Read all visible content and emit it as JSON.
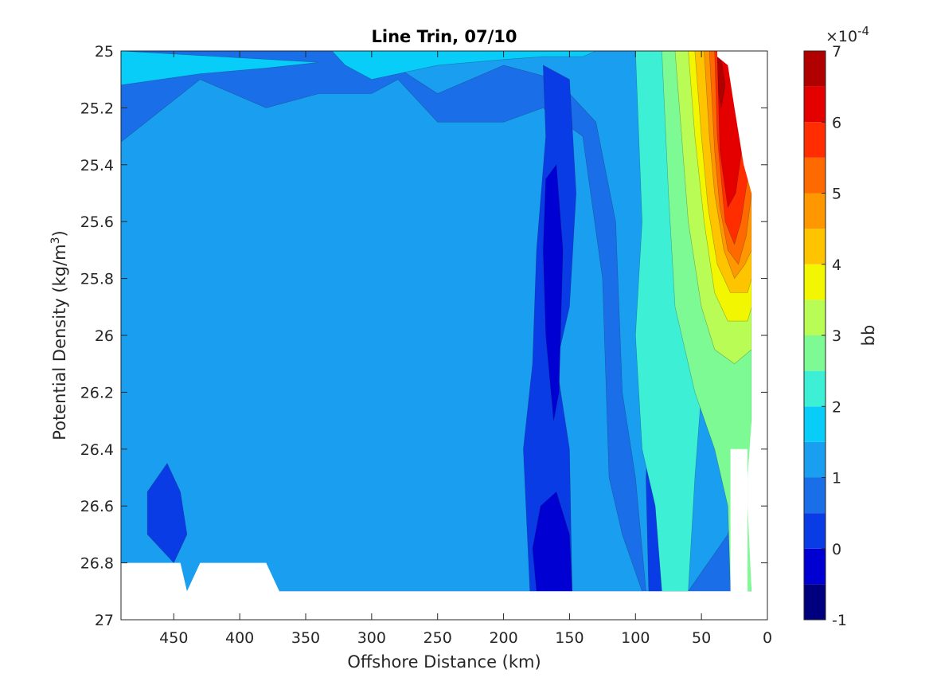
{
  "chart_data": {
    "type": "contourf",
    "title": "Line Trin, 07/10",
    "xlabel": "Offshore Distance (km)",
    "ylabel": {
      "main": "Potential Density (kg/m",
      "sup": "3",
      "close": ")"
    },
    "xlim": [
      490,
      0
    ],
    "ylim": [
      25,
      27
    ],
    "x_reversed": true,
    "y_reversed": true,
    "xticks": [
      450,
      400,
      350,
      300,
      250,
      200,
      150,
      100,
      50,
      0
    ],
    "yticks": [
      25,
      25.2,
      25.4,
      25.6,
      25.8,
      26,
      26.2,
      26.4,
      26.6,
      26.8,
      27
    ],
    "colorbar": {
      "label": "bb",
      "multiplier": {
        "prefix": "×10",
        "exp": "-4"
      },
      "ticks": [
        -1,
        0,
        1,
        2,
        3,
        4,
        5,
        6,
        7
      ],
      "levels": [
        -1,
        -0.5,
        0,
        0.5,
        1,
        1.5,
        2,
        2.5,
        3,
        3.5,
        4,
        4.5,
        5,
        5.5,
        6,
        6.5,
        7
      ],
      "colors": [
        "#00007f",
        "#0000d2",
        "#0a3ce6",
        "#1a6fe8",
        "#1a9ff0",
        "#08cdf8",
        "#3df0d5",
        "#7dfa93",
        "#b8fc55",
        "#f2f600",
        "#ffc400",
        "#ff9800",
        "#ff6a00",
        "#ff2d00",
        "#e50000",
        "#b00000"
      ]
    },
    "regions": [
      {
        "level": 0.5,
        "label": "background",
        "points": [
          [
            490,
            25
          ],
          [
            12,
            25
          ],
          [
            12,
            26.9
          ],
          [
            490,
            26.9
          ]
        ]
      },
      {
        "level": 1,
        "label": "upper-left band",
        "points": [
          [
            490,
            25
          ],
          [
            300,
            25
          ],
          [
            250,
            25.15
          ],
          [
            200,
            25.05
          ],
          [
            160,
            25.1
          ],
          [
            130,
            25.25
          ],
          [
            115,
            25.6
          ],
          [
            110,
            26.2
          ],
          [
            100,
            26.5
          ],
          [
            92,
            26.9
          ],
          [
            60,
            26.9
          ],
          [
            30,
            26.7
          ],
          [
            20,
            26.5
          ],
          [
            12,
            26.3
          ],
          [
            12,
            25
          ],
          [
            490,
            25
          ],
          [
            490,
            25.32
          ],
          [
            430,
            25.1
          ],
          [
            380,
            25.2
          ],
          [
            340,
            25.15
          ],
          [
            300,
            25.15
          ],
          [
            280,
            25.1
          ],
          [
            250,
            25.25
          ],
          [
            200,
            25.25
          ],
          [
            170,
            25.2
          ],
          [
            140,
            25.3
          ],
          [
            125,
            25.8
          ],
          [
            120,
            26.5
          ],
          [
            110,
            26.7
          ],
          [
            95,
            26.9
          ],
          [
            490,
            26.9
          ]
        ]
      },
      {
        "level": 1.5,
        "label": "top-left cyan",
        "points": [
          [
            490,
            25
          ],
          [
            330,
            25
          ],
          [
            320,
            25.05
          ],
          [
            300,
            25.1
          ],
          [
            250,
            25.05
          ],
          [
            200,
            25.03
          ],
          [
            170,
            25.02
          ],
          [
            140,
            25.02
          ],
          [
            130,
            25
          ],
          [
            490,
            25
          ],
          [
            490,
            25.12
          ],
          [
            430,
            25.08
          ],
          [
            380,
            25.06
          ],
          [
            340,
            25.04
          ]
        ]
      },
      {
        "level": 0,
        "label": "deep core 1",
        "points": [
          [
            170,
            25.05
          ],
          [
            150,
            25.1
          ],
          [
            145,
            25.5
          ],
          [
            150,
            25.9
          ],
          [
            160,
            26.1
          ],
          [
            150,
            26.4
          ],
          [
            148,
            26.9
          ],
          [
            180,
            26.9
          ],
          [
            185,
            26.4
          ],
          [
            178,
            26.1
          ],
          [
            175,
            25.7
          ],
          [
            168,
            25.3
          ]
        ]
      },
      {
        "level": 0,
        "label": "deep core 2",
        "points": [
          [
            80,
            26.0
          ],
          [
            70,
            26.2
          ],
          [
            72,
            26.6
          ],
          [
            68,
            26.9
          ],
          [
            90,
            26.9
          ],
          [
            92,
            26.5
          ],
          [
            88,
            26.1
          ]
        ]
      },
      {
        "level": 0,
        "label": "left blob",
        "points": [
          [
            470,
            26.55
          ],
          [
            455,
            26.45
          ],
          [
            445,
            26.55
          ],
          [
            440,
            26.7
          ],
          [
            450,
            26.8
          ],
          [
            470,
            26.7
          ]
        ]
      },
      {
        "level": -0.5,
        "label": "darkest core",
        "points": [
          [
            168,
            25.45
          ],
          [
            160,
            25.4
          ],
          [
            155,
            25.7
          ],
          [
            158,
            26.2
          ],
          [
            162,
            26.3
          ],
          [
            168,
            26.0
          ],
          [
            170,
            25.7
          ]
        ]
      },
      {
        "level": -0.5,
        "label": "darkest core lower",
        "points": [
          [
            172,
            26.6
          ],
          [
            160,
            26.55
          ],
          [
            150,
            26.7
          ],
          [
            148,
            26.9
          ],
          [
            175,
            26.9
          ],
          [
            178,
            26.75
          ]
        ]
      },
      {
        "level": 2,
        "label": "coastal cyan",
        "points": [
          [
            125,
            25
          ],
          [
            100,
            25
          ],
          [
            95,
            25.6
          ],
          [
            100,
            26.0
          ],
          [
            95,
            26.4
          ],
          [
            85,
            26.6
          ],
          [
            80,
            26.9
          ],
          [
            60,
            26.9
          ],
          [
            55,
            26.5
          ],
          [
            50,
            26.2
          ],
          [
            45,
            26.0
          ],
          [
            12,
            26.0
          ],
          [
            12,
            25
          ],
          [
            125,
            25
          ]
        ]
      },
      {
        "level": 2.5,
        "label": "coastal teal",
        "points": [
          [
            100,
            25
          ],
          [
            80,
            25
          ],
          [
            75,
            25.5
          ],
          [
            70,
            25.9
          ],
          [
            55,
            26.2
          ],
          [
            40,
            26.4
          ],
          [
            30,
            26.6
          ],
          [
            28,
            26.9
          ],
          [
            12,
            26.9
          ],
          [
            12,
            25.6
          ],
          [
            20,
            25.5
          ],
          [
            30,
            25.4
          ],
          [
            45,
            25.2
          ],
          [
            50,
            25
          ]
        ]
      },
      {
        "level": 3,
        "label": "coastal green",
        "points": [
          [
            85,
            25
          ],
          [
            70,
            25
          ],
          [
            65,
            25.3
          ],
          [
            60,
            25.6
          ],
          [
            50,
            25.9
          ],
          [
            40,
            26.05
          ],
          [
            25,
            26.1
          ],
          [
            12,
            26.05
          ],
          [
            12,
            25.0
          ],
          [
            85,
            25
          ]
        ]
      },
      {
        "level": 3.5,
        "label": "coastal lime",
        "points": [
          [
            75,
            25
          ],
          [
            60,
            25
          ],
          [
            55,
            25.3
          ],
          [
            48,
            25.6
          ],
          [
            40,
            25.85
          ],
          [
            30,
            25.95
          ],
          [
            15,
            25.95
          ],
          [
            12,
            25.9
          ],
          [
            12,
            25
          ],
          [
            75,
            25
          ]
        ]
      },
      {
        "level": 4,
        "label": "coastal yellow",
        "points": [
          [
            65,
            25
          ],
          [
            55,
            25
          ],
          [
            50,
            25.3
          ],
          [
            45,
            25.55
          ],
          [
            38,
            25.75
          ],
          [
            28,
            25.85
          ],
          [
            15,
            25.85
          ],
          [
            12,
            25.8
          ],
          [
            12,
            25
          ],
          [
            65,
            25
          ]
        ]
      },
      {
        "level": 4.5,
        "label": "coastal orange",
        "points": [
          [
            58,
            25
          ],
          [
            48,
            25
          ],
          [
            44,
            25.3
          ],
          [
            40,
            25.5
          ],
          [
            33,
            25.7
          ],
          [
            25,
            25.8
          ],
          [
            17,
            25.75
          ],
          [
            12,
            25.7
          ],
          [
            12,
            25
          ],
          [
            58,
            25
          ]
        ]
      },
      {
        "level": 5,
        "label": "coastal orange-red",
        "points": [
          [
            52,
            25
          ],
          [
            44,
            25
          ],
          [
            40,
            25.35
          ],
          [
            36,
            25.55
          ],
          [
            30,
            25.7
          ],
          [
            22,
            25.75
          ],
          [
            16,
            25.65
          ],
          [
            12,
            25.5
          ],
          [
            12,
            25
          ],
          [
            52,
            25
          ]
        ]
      },
      {
        "level": 5.5,
        "label": "coastal red-orange",
        "points": [
          [
            48,
            25
          ],
          [
            40,
            25
          ],
          [
            38,
            25.3
          ],
          [
            32,
            25.6
          ],
          [
            25,
            25.68
          ],
          [
            20,
            25.6
          ],
          [
            15,
            25.45
          ],
          [
            12,
            25.3
          ],
          [
            12,
            25
          ],
          [
            48,
            25
          ]
        ]
      },
      {
        "level": 6,
        "label": "coastal red",
        "points": [
          [
            44,
            25
          ],
          [
            38,
            25
          ],
          [
            36,
            25.35
          ],
          [
            30,
            25.55
          ],
          [
            24,
            25.5
          ],
          [
            18,
            25.3
          ],
          [
            12,
            25.1
          ],
          [
            12,
            25
          ],
          [
            44,
            25
          ]
        ]
      },
      {
        "level": 6.5,
        "label": "coastal dark red",
        "points": [
          [
            41,
            25
          ],
          [
            38,
            25
          ],
          [
            37,
            25.15
          ],
          [
            35,
            25.2
          ],
          [
            32,
            25.12
          ],
          [
            36,
            25
          ]
        ]
      }
    ],
    "nodata": [
      {
        "label": "nearshore upper gap",
        "points": [
          [
            38,
            25
          ],
          [
            0,
            25
          ],
          [
            0,
            27
          ],
          [
            12,
            27
          ],
          [
            12,
            26.9
          ],
          [
            15,
            26.6
          ],
          [
            15,
            26.5
          ],
          [
            12,
            26.3
          ],
          [
            12,
            25.5
          ],
          [
            18,
            25.4
          ],
          [
            25,
            25.2
          ],
          [
            30,
            25.05
          ],
          [
            38,
            25.02
          ]
        ]
      },
      {
        "label": "nearshore lower gap",
        "points": [
          [
            28,
            26.4
          ],
          [
            15,
            26.4
          ],
          [
            15,
            26.95
          ],
          [
            28,
            26.95
          ]
        ]
      },
      {
        "label": "bottom gap",
        "points": [
          [
            490,
            26.8
          ],
          [
            445,
            26.8
          ],
          [
            440,
            26.9
          ],
          [
            430,
            26.8
          ],
          [
            380,
            26.8
          ],
          [
            370,
            26.9
          ],
          [
            0,
            26.9
          ],
          [
            0,
            27
          ],
          [
            490,
            27
          ]
        ]
      }
    ]
  }
}
